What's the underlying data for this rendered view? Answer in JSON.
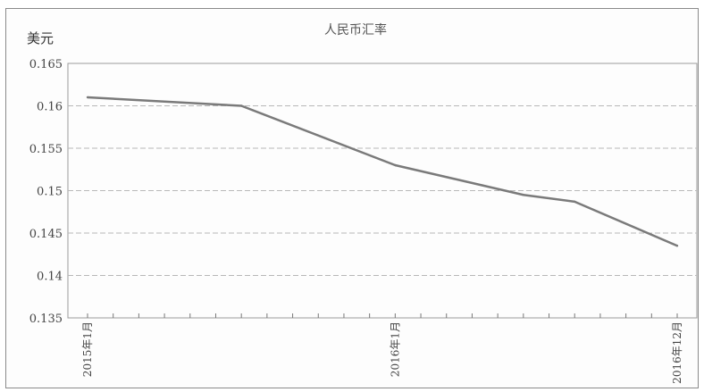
{
  "chart_data": {
    "type": "line",
    "title": "人民币汇率",
    "ylabel": "美元",
    "xlabel": "",
    "ylim": [
      0.135,
      0.165
    ],
    "yticks": [
      "0.165",
      "0.16",
      "0.155",
      "0.15",
      "0.145",
      "0.14",
      "0.135"
    ],
    "x_tick_labels": [
      "2015年1月",
      "2016年1月",
      "2016年12月"
    ],
    "grid": true,
    "series": [
      {
        "points": [
          {
            "x": "2015-01",
            "y": 0.161
          },
          {
            "x": "2015-07",
            "y": 0.16
          },
          {
            "x": "2016-01",
            "y": 0.153
          },
          {
            "x": "2016-06",
            "y": 0.1495
          },
          {
            "x": "2016-08",
            "y": 0.1487
          },
          {
            "x": "2016-12",
            "y": 0.1435
          }
        ]
      }
    ],
    "line_color": "#7a7a7a",
    "grid_color": "#b8b8b8"
  }
}
